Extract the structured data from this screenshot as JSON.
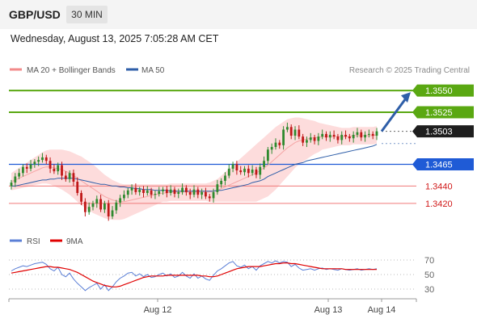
{
  "header": {
    "symbol": "GBP/USD",
    "timeframe": "30 MIN"
  },
  "datetime": "Wednesday, August 13, 2025 7:05:28 AM CET",
  "legend": {
    "ma20_bb": {
      "label": "MA 20 + Bollinger Bands",
      "color": "#f28a8a"
    },
    "ma50": {
      "label": "MA 50",
      "color": "#2e5ea8"
    }
  },
  "copyright": "Research © 2025 Trading Central",
  "rsi_legend": {
    "rsi": {
      "label": "RSI",
      "color": "#5b7fd6"
    },
    "ma9": {
      "label": "9MA",
      "color": "#e00000"
    }
  },
  "colors": {
    "bull": "#2f8a2f",
    "bear": "#c01818",
    "bb_fill": "#fddcdc",
    "ma20": "#f5a5a5",
    "ma50": "#2e5ea8",
    "target": "#5aa812",
    "support_blue": "#1f5bd6",
    "support_red": "#f07a7a",
    "arrow": "#2e5ea8"
  },
  "chart_data": [
    {
      "type": "candlestick",
      "x_tick_labels": [
        "Aug 12",
        "Aug 13",
        "Aug 14"
      ],
      "ylim": [
        1.3392,
        1.3565
      ],
      "levels": [
        {
          "value": 1.355,
          "label": "1.3550",
          "kind": "resistance"
        },
        {
          "value": 1.3525,
          "label": "1.3525",
          "kind": "resistance"
        },
        {
          "value": 1.3503,
          "label": "1.3503",
          "kind": "last"
        },
        {
          "value": 1.3465,
          "label": "1.3465",
          "kind": "support"
        },
        {
          "value": 1.344,
          "label": "1.3440",
          "kind": "support_minor"
        },
        {
          "value": 1.342,
          "label": "1.3420",
          "kind": "support_minor"
        }
      ],
      "close": [
        1.3444,
        1.3451,
        1.3455,
        1.3462,
        1.346,
        1.3465,
        1.3468,
        1.347,
        1.3473,
        1.3469,
        1.346,
        1.3457,
        1.3464,
        1.3452,
        1.3448,
        1.3455,
        1.3445,
        1.3432,
        1.3422,
        1.341,
        1.3416,
        1.342,
        1.3425,
        1.3413,
        1.342,
        1.3405,
        1.3412,
        1.3421,
        1.3426,
        1.343,
        1.3435,
        1.3438,
        1.3433,
        1.3436,
        1.3432,
        1.3435,
        1.343,
        1.3431,
        1.3434,
        1.3436,
        1.3432,
        1.3436,
        1.3431,
        1.3433,
        1.3438,
        1.3433,
        1.343,
        1.3436,
        1.343,
        1.3433,
        1.3428,
        1.3426,
        1.3433,
        1.3442,
        1.3446,
        1.3452,
        1.346,
        1.3465,
        1.3458,
        1.3456,
        1.346,
        1.3455,
        1.3459,
        1.3453,
        1.3462,
        1.3469,
        1.3482,
        1.3485,
        1.349,
        1.3487,
        1.3505,
        1.3508,
        1.3498,
        1.3505,
        1.3497,
        1.349,
        1.3493,
        1.3496,
        1.3492,
        1.3497,
        1.35,
        1.3496,
        1.3499,
        1.3497,
        1.3493,
        1.3499,
        1.3497,
        1.3495,
        1.3499,
        1.3502,
        1.3496,
        1.3499,
        1.35,
        1.3498,
        1.3503
      ],
      "ma50": [
        1.344,
        1.344,
        1.3441,
        1.3442,
        1.3443,
        1.3444,
        1.3445,
        1.3446,
        1.3447,
        1.3447,
        1.3448,
        1.3448,
        1.3449,
        1.3449,
        1.3449,
        1.3449,
        1.3449,
        1.3448,
        1.3447,
        1.3446,
        1.3445,
        1.3444,
        1.3443,
        1.3442,
        1.3442,
        1.3441,
        1.344,
        1.344,
        1.3439,
        1.3439,
        1.3438,
        1.3438,
        1.3437,
        1.3437,
        1.3436,
        1.3436,
        1.3436,
        1.3435,
        1.3435,
        1.3435,
        1.3435,
        1.3434,
        1.3434,
        1.3434,
        1.3434,
        1.3434,
        1.3434,
        1.3434,
        1.3434,
        1.3434,
        1.3434,
        1.3434,
        1.3434,
        1.3435,
        1.3435,
        1.3436,
        1.3437,
        1.3438,
        1.3439,
        1.344,
        1.3441,
        1.3442,
        1.3444,
        1.3445,
        1.3446,
        1.3448,
        1.3451,
        1.3453,
        1.3455,
        1.3457,
        1.3459,
        1.3461,
        1.3463,
        1.3465,
        1.3466,
        1.3467,
        1.3469,
        1.347,
        1.3471,
        1.3472,
        1.3473,
        1.3474,
        1.3475,
        1.3476,
        1.3477,
        1.3478,
        1.3479,
        1.348,
        1.3481,
        1.3482,
        1.3483,
        1.3484,
        1.3485,
        1.3486,
        1.3488
      ],
      "ma20": [
        1.3445,
        1.3447,
        1.3449,
        1.3451,
        1.3453,
        1.3455,
        1.3457,
        1.3459,
        1.3461,
        1.3462,
        1.3462,
        1.3461,
        1.346,
        1.3459,
        1.3457,
        1.3455,
        1.3452,
        1.3449,
        1.3446,
        1.3443,
        1.344,
        1.3437,
        1.3434,
        1.3431,
        1.3428,
        1.3426,
        1.3424,
        1.3423,
        1.3422,
        1.3422,
        1.3423,
        1.3424,
        1.3425,
        1.3426,
        1.3427,
        1.3428,
        1.3429,
        1.343,
        1.3431,
        1.3432,
        1.3432,
        1.3433,
        1.3433,
        1.3433,
        1.3433,
        1.3433,
        1.3433,
        1.3433,
        1.3433,
        1.3433,
        1.3433,
        1.3433,
        1.3434,
        1.3435,
        1.3437,
        1.3439,
        1.3441,
        1.3443,
        1.3445,
        1.3447,
        1.3449,
        1.3451,
        1.3453,
        1.3455,
        1.3458,
        1.3461,
        1.3464,
        1.3468,
        1.3472,
        1.3476,
        1.348,
        1.3484,
        1.3487,
        1.349,
        1.3492,
        1.3493,
        1.3494,
        1.3495,
        1.3496,
        1.3496,
        1.3497,
        1.3497,
        1.3497,
        1.3497,
        1.3497,
        1.3497,
        1.3497,
        1.3497,
        1.3498,
        1.3498,
        1.3498,
        1.3498,
        1.3498,
        1.3498,
        1.3499
      ],
      "bb_halfwidth": [
        0.001,
        0.0011,
        0.0012,
        0.0013,
        0.0014,
        0.0015,
        0.0016,
        0.0017,
        0.0018,
        0.0019,
        0.002,
        0.0021,
        0.0022,
        0.0023,
        0.0024,
        0.0025,
        0.0026,
        0.0027,
        0.0028,
        0.0028,
        0.0028,
        0.0028,
        0.0027,
        0.0026,
        0.0025,
        0.0024,
        0.0023,
        0.0022,
        0.0021,
        0.002,
        0.0019,
        0.0018,
        0.0017,
        0.0016,
        0.0015,
        0.0014,
        0.0013,
        0.0012,
        0.0011,
        0.001,
        0.001,
        0.001,
        0.001,
        0.001,
        0.001,
        0.001,
        0.001,
        0.001,
        0.001,
        0.001,
        0.001,
        0.0011,
        0.0012,
        0.0013,
        0.0015,
        0.0017,
        0.0019,
        0.0021,
        0.0023,
        0.0025,
        0.0027,
        0.0029,
        0.0031,
        0.0033,
        0.0034,
        0.0035,
        0.0036,
        0.0036,
        0.0036,
        0.0035,
        0.0034,
        0.0033,
        0.0031,
        0.0029,
        0.0027,
        0.0025,
        0.0023,
        0.0021,
        0.0019,
        0.0017,
        0.0015,
        0.0014,
        0.0013,
        0.0012,
        0.0011,
        0.001,
        0.001,
        0.001,
        0.001,
        0.001,
        0.001,
        0.001,
        0.001,
        0.001,
        0.001
      ],
      "projection": {
        "from": 1.3503,
        "to": 1.355
      }
    },
    {
      "type": "line",
      "title": "RSI",
      "y_ticks": [
        "70",
        "50",
        "30"
      ],
      "ylim": [
        25,
        75
      ],
      "series": [
        {
          "name": "RSI",
          "values": [
            55,
            58,
            60,
            62,
            61,
            63,
            65,
            66,
            67,
            64,
            58,
            55,
            60,
            50,
            47,
            52,
            44,
            38,
            33,
            28,
            32,
            35,
            38,
            30,
            36,
            28,
            33,
            40,
            45,
            48,
            52,
            53,
            48,
            51,
            47,
            50,
            46,
            47,
            50,
            52,
            48,
            51,
            46,
            48,
            53,
            48,
            45,
            51,
            45,
            48,
            44,
            42,
            49,
            55,
            58,
            62,
            66,
            68,
            62,
            60,
            63,
            58,
            61,
            56,
            62,
            65,
            68,
            66,
            69,
            66,
            68,
            67,
            61,
            64,
            59,
            56,
            57,
            58,
            56,
            58,
            59,
            57,
            58,
            57,
            56,
            58,
            57,
            56,
            57,
            58,
            56,
            57,
            58,
            57,
            58
          ]
        },
        {
          "name": "9MA",
          "values": [
            52,
            53,
            54,
            55,
            56,
            57,
            58,
            59,
            60,
            61,
            61,
            60,
            60,
            59,
            58,
            57,
            55,
            53,
            50,
            47,
            44,
            41,
            39,
            37,
            35,
            34,
            33,
            33,
            34,
            36,
            38,
            40,
            42,
            44,
            46,
            47,
            48,
            48,
            48,
            48,
            49,
            49,
            49,
            49,
            49,
            49,
            49,
            49,
            49,
            48,
            48,
            47,
            47,
            48,
            50,
            52,
            54,
            56,
            58,
            59,
            60,
            61,
            61,
            61,
            61,
            62,
            63,
            64,
            65,
            65,
            66,
            66,
            65,
            65,
            64,
            63,
            62,
            61,
            60,
            59,
            58,
            58,
            58,
            58,
            58,
            58,
            57,
            57,
            57,
            57,
            57,
            57,
            57,
            57,
            57
          ]
        }
      ]
    }
  ]
}
